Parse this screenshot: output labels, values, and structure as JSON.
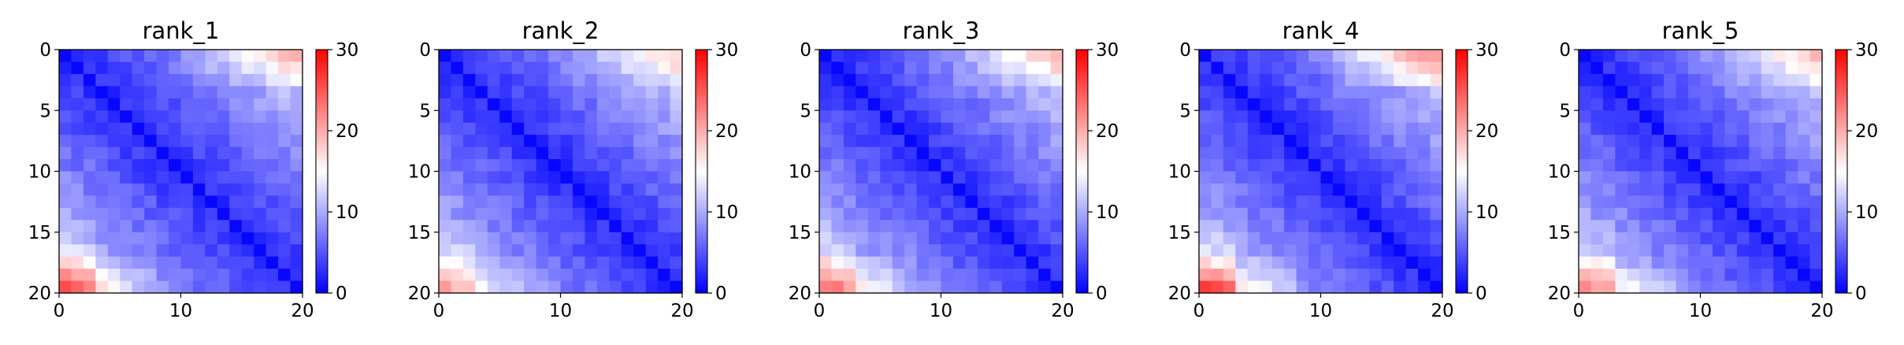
{
  "chart_data": [
    {
      "type": "heatmap",
      "title": "rank_1",
      "size": 20,
      "xlim": [
        0,
        20
      ],
      "ylim": [
        20,
        0
      ],
      "xticks": [
        "0",
        "10",
        "20"
      ],
      "yticks": [
        "0",
        "5",
        "10",
        "15",
        "20"
      ],
      "colorbar": {
        "min": 0,
        "max": 30,
        "ticks": [
          "0",
          "10",
          "20",
          "30"
        ],
        "colormap": "bwr"
      },
      "corner_boost": [
        0.8,
        0.9
      ],
      "seed": 11
    },
    {
      "type": "heatmap",
      "title": "rank_2",
      "size": 20,
      "xlim": [
        0,
        20
      ],
      "ylim": [
        20,
        0
      ],
      "xticks": [
        "0",
        "10",
        "20"
      ],
      "yticks": [
        "0",
        "5",
        "10",
        "15",
        "20"
      ],
      "colorbar": {
        "min": 0,
        "max": 30,
        "ticks": [
          "0",
          "10",
          "20",
          "30"
        ],
        "colormap": "bwr"
      },
      "corner_boost": [
        0.6,
        0.6
      ],
      "seed": 23
    },
    {
      "type": "heatmap",
      "title": "rank_3",
      "size": 20,
      "xlim": [
        0,
        20
      ],
      "ylim": [
        20,
        0
      ],
      "xticks": [
        "0",
        "10",
        "20"
      ],
      "yticks": [
        "0",
        "5",
        "10",
        "15",
        "20"
      ],
      "colorbar": {
        "min": 0,
        "max": 30,
        "ticks": [
          "0",
          "10",
          "20",
          "30"
        ],
        "colormap": "bwr"
      },
      "corner_boost": [
        0.7,
        0.8
      ],
      "seed": 37
    },
    {
      "type": "heatmap",
      "title": "rank_4",
      "size": 20,
      "xlim": [
        0,
        20
      ],
      "ylim": [
        20,
        0
      ],
      "xticks": [
        "0",
        "10",
        "20"
      ],
      "yticks": [
        "0",
        "5",
        "10",
        "15",
        "20"
      ],
      "colorbar": {
        "min": 0,
        "max": 30,
        "ticks": [
          "0",
          "10",
          "20",
          "30"
        ],
        "colormap": "bwr"
      },
      "corner_boost": [
        1.0,
        1.0
      ],
      "seed": 41
    },
    {
      "type": "heatmap",
      "title": "rank_5",
      "size": 20,
      "xlim": [
        0,
        20
      ],
      "ylim": [
        20,
        0
      ],
      "xticks": [
        "0",
        "10",
        "20"
      ],
      "yticks": [
        "0",
        "5",
        "10",
        "15",
        "20"
      ],
      "colorbar": {
        "min": 0,
        "max": 30,
        "ticks": [
          "0",
          "10",
          "20",
          "30"
        ],
        "colormap": "bwr"
      },
      "corner_boost": [
        0.7,
        0.7
      ],
      "seed": 53
    }
  ]
}
